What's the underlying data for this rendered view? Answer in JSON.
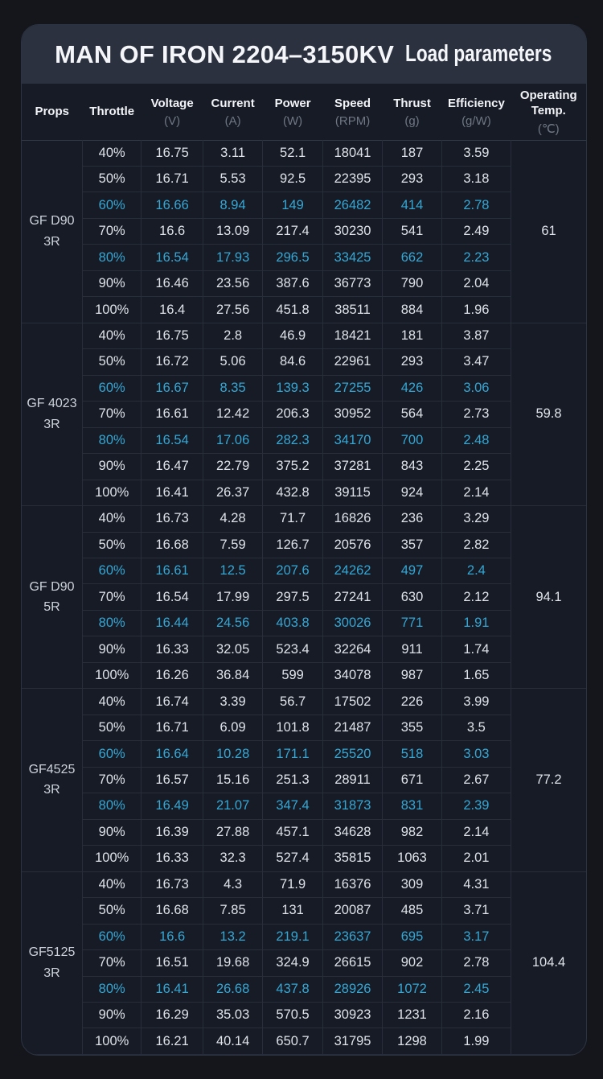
{
  "chart_data": {
    "type": "table",
    "title_model": "MAN OF IRON 2204–3150KV",
    "title_label": "Load parameters",
    "columns": [
      {
        "label": "Props",
        "unit": ""
      },
      {
        "label": "Throttle",
        "unit": ""
      },
      {
        "label": "Voltage",
        "unit": "(V)"
      },
      {
        "label": "Current",
        "unit": "(A)"
      },
      {
        "label": "Power",
        "unit": "(W)"
      },
      {
        "label": "Speed",
        "unit": "(RPM)"
      },
      {
        "label": "Thrust",
        "unit": "(g)"
      },
      {
        "label": "Efficiency",
        "unit": "(g/W)"
      },
      {
        "label": "Operating Temp.",
        "unit": "(℃)"
      }
    ],
    "row_keys": [
      "throttle",
      "voltage",
      "current",
      "power",
      "speed",
      "thrust",
      "efficiency"
    ],
    "highlight_throttles": [
      "60%",
      "80%"
    ],
    "groups": [
      {
        "props": "GF D90 3R",
        "props_lines": [
          "GF D90",
          "3R"
        ],
        "operating_temp_c": "61",
        "rows": [
          [
            "40%",
            "16.75",
            "3.11",
            "52.1",
            "18041",
            "187",
            "3.59"
          ],
          [
            "50%",
            "16.71",
            "5.53",
            "92.5",
            "22395",
            "293",
            "3.18"
          ],
          [
            "60%",
            "16.66",
            "8.94",
            "149",
            "26482",
            "414",
            "2.78"
          ],
          [
            "70%",
            "16.6",
            "13.09",
            "217.4",
            "30230",
            "541",
            "2.49"
          ],
          [
            "80%",
            "16.54",
            "17.93",
            "296.5",
            "33425",
            "662",
            "2.23"
          ],
          [
            "90%",
            "16.46",
            "23.56",
            "387.6",
            "36773",
            "790",
            "2.04"
          ],
          [
            "100%",
            "16.4",
            "27.56",
            "451.8",
            "38511",
            "884",
            "1.96"
          ]
        ]
      },
      {
        "props": "GF 4023 3R",
        "props_lines": [
          "GF 4023",
          "3R"
        ],
        "operating_temp_c": "59.8",
        "rows": [
          [
            "40%",
            "16.75",
            "2.8",
            "46.9",
            "18421",
            "181",
            "3.87"
          ],
          [
            "50%",
            "16.72",
            "5.06",
            "84.6",
            "22961",
            "293",
            "3.47"
          ],
          [
            "60%",
            "16.67",
            "8.35",
            "139.3",
            "27255",
            "426",
            "3.06"
          ],
          [
            "70%",
            "16.61",
            "12.42",
            "206.3",
            "30952",
            "564",
            "2.73"
          ],
          [
            "80%",
            "16.54",
            "17.06",
            "282.3",
            "34170",
            "700",
            "2.48"
          ],
          [
            "90%",
            "16.47",
            "22.79",
            "375.2",
            "37281",
            "843",
            "2.25"
          ],
          [
            "100%",
            "16.41",
            "26.37",
            "432.8",
            "39115",
            "924",
            "2.14"
          ]
        ]
      },
      {
        "props": "GF D90 5R",
        "props_lines": [
          "GF D90",
          "5R"
        ],
        "operating_temp_c": "94.1",
        "rows": [
          [
            "40%",
            "16.73",
            "4.28",
            "71.7",
            "16826",
            "236",
            "3.29"
          ],
          [
            "50%",
            "16.68",
            "7.59",
            "126.7",
            "20576",
            "357",
            "2.82"
          ],
          [
            "60%",
            "16.61",
            "12.5",
            "207.6",
            "24262",
            "497",
            "2.4"
          ],
          [
            "70%",
            "16.54",
            "17.99",
            "297.5",
            "27241",
            "630",
            "2.12"
          ],
          [
            "80%",
            "16.44",
            "24.56",
            "403.8",
            "30026",
            "771",
            "1.91"
          ],
          [
            "90%",
            "16.33",
            "32.05",
            "523.4",
            "32264",
            "911",
            "1.74"
          ],
          [
            "100%",
            "16.26",
            "36.84",
            "599",
            "34078",
            "987",
            "1.65"
          ]
        ]
      },
      {
        "props": "GF4525 3R",
        "props_lines": [
          "GF4525",
          "3R"
        ],
        "operating_temp_c": "77.2",
        "rows": [
          [
            "40%",
            "16.74",
            "3.39",
            "56.7",
            "17502",
            "226",
            "3.99"
          ],
          [
            "50%",
            "16.71",
            "6.09",
            "101.8",
            "21487",
            "355",
            "3.5"
          ],
          [
            "60%",
            "16.64",
            "10.28",
            "171.1",
            "25520",
            "518",
            "3.03"
          ],
          [
            "70%",
            "16.57",
            "15.16",
            "251.3",
            "28911",
            "671",
            "2.67"
          ],
          [
            "80%",
            "16.49",
            "21.07",
            "347.4",
            "31873",
            "831",
            "2.39"
          ],
          [
            "90%",
            "16.39",
            "27.88",
            "457.1",
            "34628",
            "982",
            "2.14"
          ],
          [
            "100%",
            "16.33",
            "32.3",
            "527.4",
            "35815",
            "1063",
            "2.01"
          ]
        ]
      },
      {
        "props": "GF5125 3R",
        "props_lines": [
          "GF5125",
          "3R"
        ],
        "operating_temp_c": "104.4",
        "rows": [
          [
            "40%",
            "16.73",
            "4.3",
            "71.9",
            "16376",
            "309",
            "4.31"
          ],
          [
            "50%",
            "16.68",
            "7.85",
            "131",
            "20087",
            "485",
            "3.71"
          ],
          [
            "60%",
            "16.6",
            "13.2",
            "219.1",
            "23637",
            "695",
            "3.17"
          ],
          [
            "70%",
            "16.51",
            "19.68",
            "324.9",
            "26615",
            "902",
            "2.78"
          ],
          [
            "80%",
            "16.41",
            "26.68",
            "437.8",
            "28926",
            "1072",
            "2.45"
          ],
          [
            "90%",
            "16.29",
            "35.03",
            "570.5",
            "30923",
            "1231",
            "2.16"
          ],
          [
            "100%",
            "16.21",
            "40.14",
            "650.7",
            "31795",
            "1298",
            "1.99"
          ]
        ]
      }
    ]
  },
  "colors": {
    "accent_highlight": "#35a7d5",
    "page_bg": "#14161c",
    "card_bg": "#171b25",
    "title_bar_bg": "#2b313f",
    "cell_border": "#272d39",
    "text_primary": "#dfe3e9",
    "text_unit_muted": "#6f7785"
  }
}
